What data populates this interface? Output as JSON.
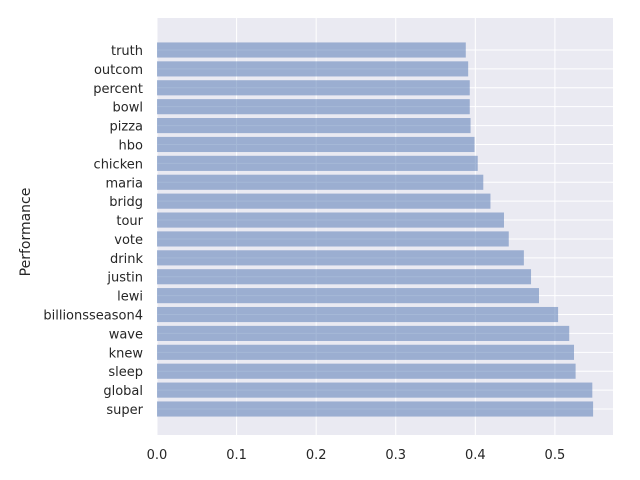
{
  "chart_data": {
    "type": "bar",
    "orientation": "horizontal",
    "title": "",
    "xlabel": "",
    "ylabel": "Performance",
    "categories": [
      "super",
      "global",
      "sleep",
      "knew",
      "wave",
      "billionsseason4",
      "lewi",
      "justin",
      "drink",
      "vote",
      "tour",
      "bridg",
      "maria",
      "chicken",
      "hbo",
      "pizza",
      "bowl",
      "percent",
      "outcom",
      "truth"
    ],
    "values": [
      0.548,
      0.547,
      0.526,
      0.524,
      0.518,
      0.504,
      0.48,
      0.47,
      0.461,
      0.442,
      0.436,
      0.419,
      0.41,
      0.403,
      0.399,
      0.394,
      0.393,
      0.393,
      0.391,
      0.388
    ],
    "xlim": [
      0,
      0.573
    ],
    "xticks": [
      "0.0",
      "0.1",
      "0.2",
      "0.3",
      "0.4",
      "0.5"
    ],
    "grid": true,
    "bar_color": "#4c72b0",
    "bar_alpha": 0.5,
    "background_color": "#eaeaf2"
  }
}
